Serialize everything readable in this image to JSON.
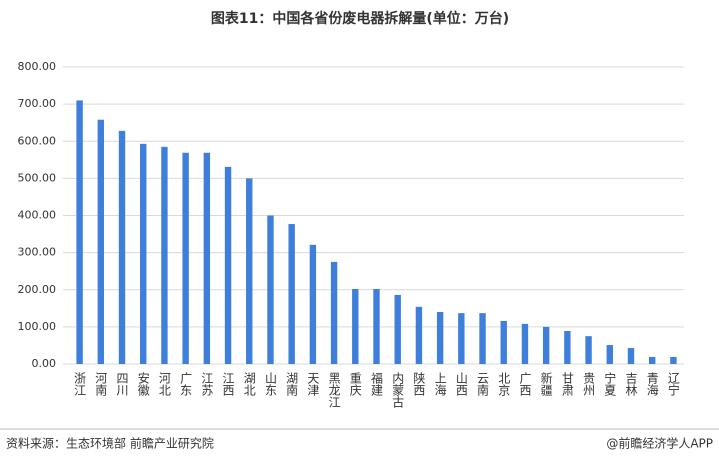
{
  "chart_data": {
    "type": "bar",
    "title": "图表11：中国各省份废电器拆解量(单位：万台)",
    "categories": [
      "浙江",
      "河南",
      "四川",
      "安徽",
      "河北",
      "广东",
      "江苏",
      "江西",
      "湖北",
      "山东",
      "湖南",
      "天津",
      "黑龙江",
      "重庆",
      "福建",
      "内蒙古",
      "陕西",
      "上海",
      "山西",
      "云南",
      "北京",
      "广西",
      "新疆",
      "甘肃",
      "贵州",
      "宁夏",
      "吉林",
      "青海",
      "辽宁"
    ],
    "values": [
      710,
      658,
      628,
      593,
      585,
      569,
      569,
      531,
      500,
      400,
      377,
      321,
      275,
      202,
      202,
      186,
      154,
      140,
      137,
      137,
      116,
      108,
      100,
      89,
      75,
      51,
      43,
      19,
      19
    ],
    "color": "#3f7fdc",
    "ylim": [
      0,
      800
    ],
    "yticks": [
      {
        "value": 0,
        "label": "0.00"
      },
      {
        "value": 100,
        "label": "100.00"
      },
      {
        "value": 200,
        "label": "200.00"
      },
      {
        "value": 300,
        "label": "300.00"
      },
      {
        "value": 400,
        "label": "400.00"
      },
      {
        "value": 500,
        "label": "500.00"
      },
      {
        "value": 600,
        "label": "600.00"
      },
      {
        "value": 700,
        "label": "700.00"
      },
      {
        "value": 800,
        "label": "800.00"
      }
    ],
    "grid": true,
    "source": "资料来源：生态环境部 前瞻产业研究院",
    "credit": "@前瞻经济学人APP"
  }
}
